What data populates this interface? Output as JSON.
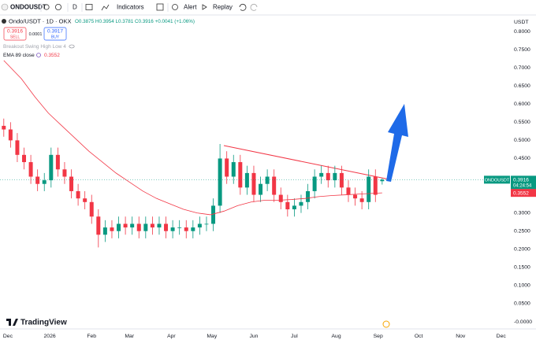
{
  "toolbar": {
    "symbol": "ONDOUSDT",
    "interval": "D",
    "indicators": "Indicators",
    "alert": "Alert",
    "replay": "Replay"
  },
  "legend": {
    "title": "Ondo/USDT · 1D · OKX",
    "ohlc": "O0.3875 H0.3954 L0.3781 C0.3916 +0.0041 (+1.06%)",
    "sell_price": "0.3916",
    "sell": "SELL",
    "spread": "0.0001",
    "buy_price": "0.3917",
    "buy": "BUY",
    "indicator": "Breakout Swing High Low 4",
    "ema_value": "0.3552"
  },
  "price_scale": {
    "currency": "USDT",
    "symbol_tag": "ONDOUSDT",
    "last_price": "0.3916",
    "countdown": "04:24:54",
    "ema_tag": "0.3552"
  },
  "branding": "TradingView",
  "chart_data": {
    "type": "candlestick",
    "grid": false,
    "xlim": [
      -5.8,
      371
    ],
    "ylim": [
      -0.0195,
      0.839
    ],
    "xticks": [
      {
        "value": 0,
        "label": "Dec"
      },
      {
        "value": 31,
        "label": "2026"
      },
      {
        "value": 62,
        "label": "Feb"
      },
      {
        "value": 90,
        "label": "Mar"
      },
      {
        "value": 121,
        "label": "Apr"
      },
      {
        "value": 151,
        "label": "May"
      },
      {
        "value": 182,
        "label": "Jun"
      },
      {
        "value": 212,
        "label": "Jul"
      },
      {
        "value": 243,
        "label": "Aug"
      },
      {
        "value": 274,
        "label": "Sep"
      },
      {
        "value": 304,
        "label": "Oct"
      },
      {
        "value": 335,
        "label": "Nov"
      },
      {
        "value": 365,
        "label": "Dec"
      }
    ],
    "yticks": [
      {
        "value": 0.8,
        "label": "0.8000"
      },
      {
        "value": 0.75,
        "label": "0.7500"
      },
      {
        "value": 0.7,
        "label": "0.7000"
      },
      {
        "value": 0.65,
        "label": "0.6500"
      },
      {
        "value": 0.6,
        "label": "0.6000"
      },
      {
        "value": 0.55,
        "label": "0.5500"
      },
      {
        "value": 0.5,
        "label": "0.5000"
      },
      {
        "value": 0.45,
        "label": "0.4500"
      },
      {
        "value": 0.3,
        "label": "0.3000"
      },
      {
        "value": 0.25,
        "label": "0.2500"
      },
      {
        "value": 0.2,
        "label": "0.2000"
      },
      {
        "value": 0.15,
        "label": "0.1500"
      },
      {
        "value": 0.1,
        "label": "0.1000"
      },
      {
        "value": 0.05,
        "label": "0.0500"
      },
      {
        "value": 0,
        "label": "-0.0000"
      }
    ],
    "series": [
      {
        "up_color": "#089981",
        "down_color": "#f23645",
        "x": [
          -3,
          2,
          7,
          12,
          17,
          22,
          27,
          32,
          37,
          42,
          47,
          52,
          57,
          62,
          67,
          72,
          77,
          82,
          87,
          92,
          97,
          102,
          107,
          112,
          117,
          122,
          127,
          132,
          137,
          142,
          147,
          152,
          157,
          162,
          167,
          172,
          177,
          182,
          187,
          192,
          197,
          202,
          207,
          212,
          217,
          222,
          227,
          232,
          237,
          242,
          247,
          252,
          257,
          262,
          267,
          272,
          277
        ],
        "open": [
          0.54,
          0.53,
          0.5,
          0.46,
          0.44,
          0.4,
          0.38,
          0.39,
          0.46,
          0.42,
          0.4,
          0.36,
          0.34,
          0.33,
          0.29,
          0.24,
          0.26,
          0.25,
          0.27,
          0.26,
          0.27,
          0.25,
          0.27,
          0.26,
          0.27,
          0.25,
          0.26,
          0.26,
          0.25,
          0.26,
          0.27,
          0.27,
          0.32,
          0.45,
          0.4,
          0.44,
          0.37,
          0.41,
          0.35,
          0.38,
          0.4,
          0.35,
          0.33,
          0.31,
          0.32,
          0.33,
          0.36,
          0.4,
          0.41,
          0.39,
          0.41,
          0.37,
          0.35,
          0.34,
          0.33,
          0.4,
          0.3875
        ],
        "high": [
          0.56,
          0.55,
          0.52,
          0.48,
          0.46,
          0.42,
          0.41,
          0.48,
          0.48,
          0.44,
          0.42,
          0.38,
          0.36,
          0.35,
          0.31,
          0.28,
          0.28,
          0.29,
          0.29,
          0.29,
          0.29,
          0.29,
          0.29,
          0.29,
          0.29,
          0.28,
          0.28,
          0.28,
          0.28,
          0.29,
          0.29,
          0.34,
          0.49,
          0.47,
          0.46,
          0.46,
          0.43,
          0.43,
          0.4,
          0.42,
          0.42,
          0.37,
          0.35,
          0.34,
          0.35,
          0.38,
          0.42,
          0.43,
          0.43,
          0.43,
          0.43,
          0.39,
          0.37,
          0.36,
          0.42,
          0.42,
          0.3954
        ],
        "low": [
          0.51,
          0.48,
          0.44,
          0.42,
          0.38,
          0.36,
          0.36,
          0.37,
          0.4,
          0.38,
          0.34,
          0.32,
          0.31,
          0.27,
          0.205,
          0.22,
          0.23,
          0.23,
          0.24,
          0.24,
          0.23,
          0.23,
          0.24,
          0.24,
          0.23,
          0.23,
          0.24,
          0.23,
          0.23,
          0.24,
          0.25,
          0.25,
          0.3,
          0.38,
          0.38,
          0.35,
          0.35,
          0.33,
          0.33,
          0.36,
          0.33,
          0.31,
          0.29,
          0.29,
          0.3,
          0.31,
          0.34,
          0.38,
          0.37,
          0.37,
          0.35,
          0.33,
          0.32,
          0.31,
          0.31,
          0.33,
          0.3781
        ],
        "close": [
          0.53,
          0.5,
          0.46,
          0.44,
          0.4,
          0.38,
          0.39,
          0.46,
          0.42,
          0.4,
          0.36,
          0.34,
          0.33,
          0.29,
          0.24,
          0.26,
          0.25,
          0.27,
          0.26,
          0.27,
          0.25,
          0.27,
          0.26,
          0.27,
          0.25,
          0.26,
          0.26,
          0.25,
          0.26,
          0.27,
          0.27,
          0.32,
          0.45,
          0.4,
          0.44,
          0.37,
          0.41,
          0.35,
          0.38,
          0.4,
          0.35,
          0.33,
          0.31,
          0.32,
          0.33,
          0.36,
          0.4,
          0.41,
          0.39,
          0.41,
          0.37,
          0.35,
          0.34,
          0.33,
          0.4,
          0.35,
          0.3916
        ]
      },
      {
        "name": "EMA 89 close",
        "color": "#f23645",
        "x": [
          -3,
          10,
          20,
          30,
          40,
          50,
          60,
          70,
          80,
          90,
          100,
          110,
          120,
          130,
          140,
          150,
          160,
          170,
          180,
          190,
          200,
          210,
          220,
          230,
          240,
          250,
          260,
          270,
          277
        ],
        "values": [
          0.72,
          0.67,
          0.62,
          0.575,
          0.54,
          0.505,
          0.47,
          0.44,
          0.41,
          0.385,
          0.36,
          0.34,
          0.325,
          0.31,
          0.3,
          0.295,
          0.305,
          0.32,
          0.33,
          0.335,
          0.335,
          0.337,
          0.34,
          0.345,
          0.348,
          0.35,
          0.352,
          0.354,
          0.3552
        ]
      }
    ]
  }
}
